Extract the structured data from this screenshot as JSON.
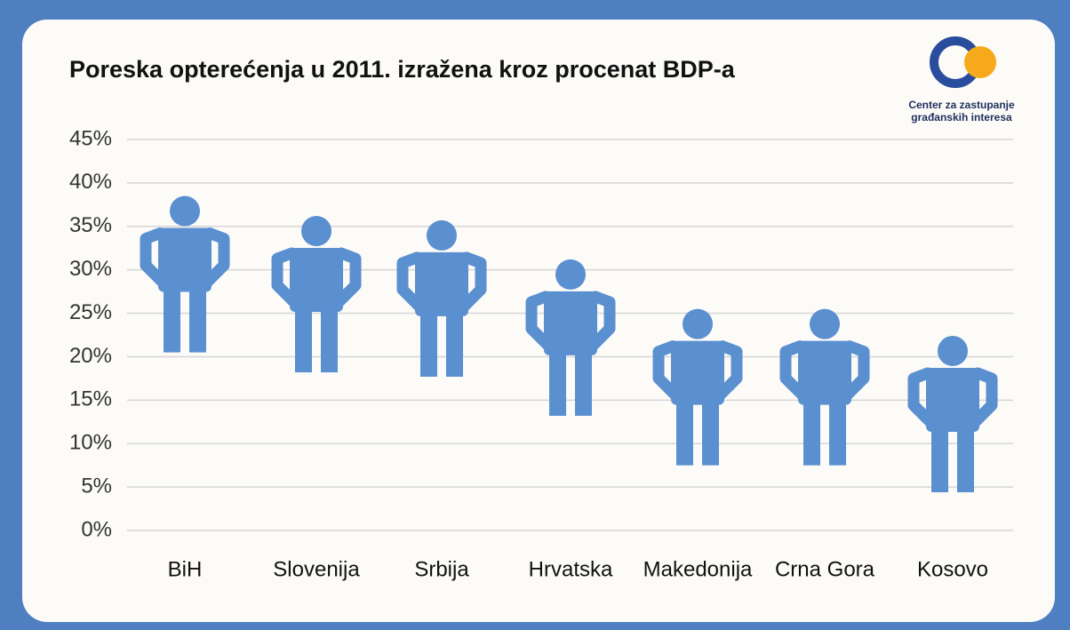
{
  "chart_data": {
    "type": "pictogram",
    "title": "Poreska opterećenja u 2011. izražena kroz procenat BDP-a",
    "categories": [
      "BiH",
      "Slovenija",
      "Srbija",
      "Hrvatska",
      "Makedonija",
      "Crna Gora",
      "Kosovo"
    ],
    "values": [
      38.5,
      36.2,
      35.7,
      31.2,
      25.5,
      25.5,
      22.4
    ],
    "color": "#5a8fd0",
    "ylim": [
      0,
      45
    ],
    "yticks": [
      {
        "value": 0,
        "label": "0%"
      },
      {
        "value": 5,
        "label": "5%"
      },
      {
        "value": 10,
        "label": "10%"
      },
      {
        "value": 15,
        "label": "15%"
      },
      {
        "value": 20,
        "label": "20%"
      },
      {
        "value": 25,
        "label": "25%"
      },
      {
        "value": 30,
        "label": "30%"
      },
      {
        "value": 35,
        "label": "35%"
      },
      {
        "value": 40,
        "label": "40%"
      },
      {
        "value": 45,
        "label": "45%"
      }
    ],
    "grid": true
  },
  "logo": {
    "lines": [
      "Center za zastupanje",
      "građanskih interesa"
    ]
  }
}
